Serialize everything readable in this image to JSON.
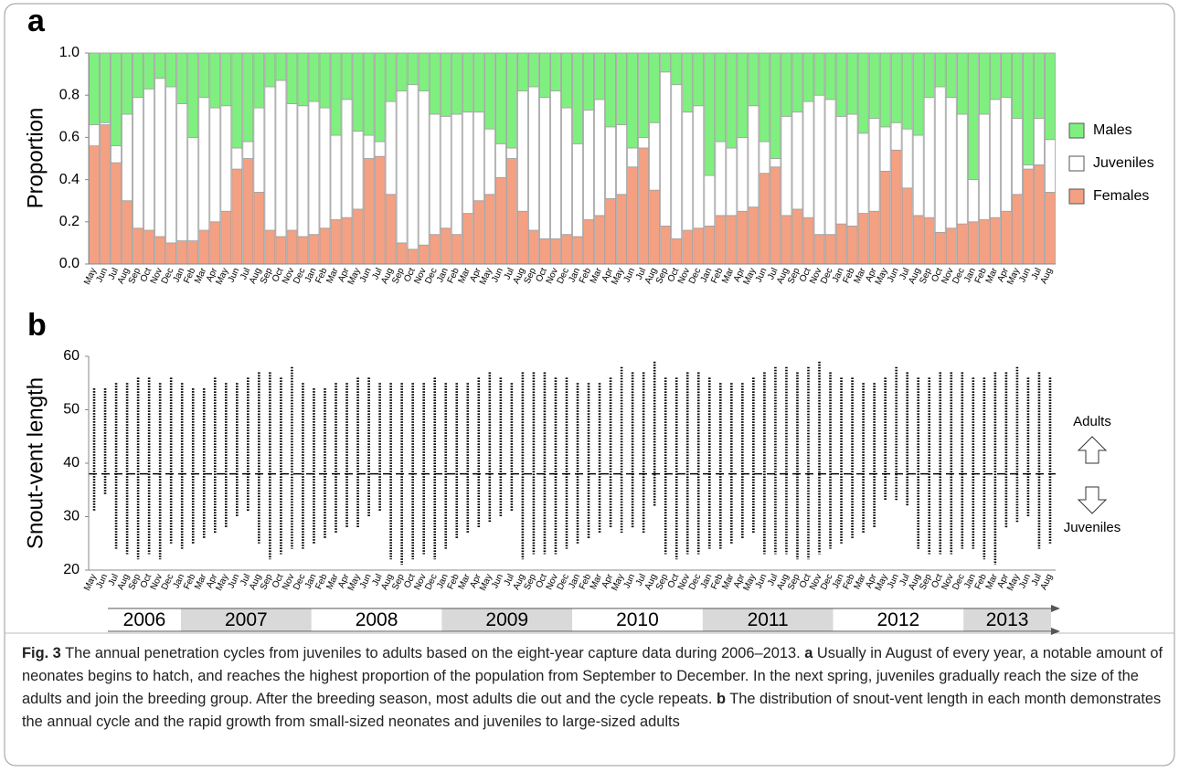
{
  "chart_data": [
    {
      "type": "stacked_bar",
      "panel_label": "a",
      "y_label": "Proportion",
      "categories": [
        "May",
        "Jun",
        "Jul",
        "Aug",
        "Sep",
        "Oct",
        "Nov",
        "Dec",
        "Jan",
        "Feb",
        "Mar",
        "Apr",
        "May",
        "Jun",
        "Jul",
        "Aug",
        "Sep",
        "Oct",
        "Nov",
        "Dec",
        "Jan",
        "Feb",
        "Mar",
        "Apr",
        "May",
        "Jun",
        "Jul",
        "Aug",
        "Sep",
        "Oct",
        "Nov",
        "Dec",
        "Jan",
        "Feb",
        "Mar",
        "Apr",
        "May",
        "Jun",
        "Jul",
        "Aug",
        "Sep",
        "Oct",
        "Nov",
        "Dec",
        "Jan",
        "Feb",
        "Mar",
        "Apr",
        "May",
        "Jun",
        "Jul",
        "Aug",
        "Sep",
        "Oct",
        "Nov",
        "Dec",
        "Jan",
        "Feb",
        "Mar",
        "Apr",
        "May",
        "Jun",
        "Jul",
        "Aug",
        "Sep",
        "Oct",
        "Nov",
        "Dec",
        "Jan",
        "Feb",
        "Mar",
        "Apr",
        "May",
        "Jun",
        "Jul",
        "Aug",
        "Sep",
        "Oct",
        "Nov",
        "Dec",
        "Jan",
        "Feb",
        "Mar",
        "Apr",
        "May",
        "Jun",
        "Jul",
        "Aug"
      ],
      "series": [
        {
          "name": "Females",
          "color": "#f4a083",
          "values": [
            0.56,
            0.66,
            0.48,
            0.3,
            0.17,
            0.16,
            0.13,
            0.1,
            0.11,
            0.11,
            0.16,
            0.2,
            0.25,
            0.45,
            0.5,
            0.34,
            0.16,
            0.13,
            0.16,
            0.13,
            0.14,
            0.17,
            0.21,
            0.22,
            0.26,
            0.5,
            0.51,
            0.33,
            0.1,
            0.07,
            0.09,
            0.14,
            0.17,
            0.14,
            0.24,
            0.3,
            0.33,
            0.41,
            0.5,
            0.25,
            0.16,
            0.12,
            0.12,
            0.14,
            0.13,
            0.21,
            0.23,
            0.31,
            0.33,
            0.46,
            0.55,
            0.35,
            0.18,
            0.12,
            0.16,
            0.17,
            0.18,
            0.23,
            0.23,
            0.25,
            0.27,
            0.43,
            0.46,
            0.23,
            0.26,
            0.22,
            0.14,
            0.14,
            0.19,
            0.18,
            0.24,
            0.25,
            0.44,
            0.54,
            0.36,
            0.23,
            0.22,
            0.15,
            0.17,
            0.19,
            0.2,
            0.21,
            0.22,
            0.25,
            0.33,
            0.45,
            0.47,
            0.34
          ]
        },
        {
          "name": "Juveniles",
          "color": "#ffffff",
          "values": [
            0.1,
            0.01,
            0.08,
            0.41,
            0.62,
            0.67,
            0.75,
            0.74,
            0.65,
            0.49,
            0.63,
            0.54,
            0.5,
            0.1,
            0.08,
            0.4,
            0.68,
            0.74,
            0.6,
            0.62,
            0.63,
            0.57,
            0.4,
            0.56,
            0.37,
            0.11,
            0.07,
            0.44,
            0.72,
            0.78,
            0.73,
            0.57,
            0.53,
            0.57,
            0.48,
            0.42,
            0.31,
            0.16,
            0.05,
            0.57,
            0.68,
            0.67,
            0.7,
            0.6,
            0.44,
            0.52,
            0.55,
            0.34,
            0.33,
            0.09,
            0.05,
            0.32,
            0.73,
            0.73,
            0.56,
            0.58,
            0.24,
            0.35,
            0.32,
            0.35,
            0.48,
            0.15,
            0.04,
            0.47,
            0.46,
            0.55,
            0.66,
            0.64,
            0.51,
            0.53,
            0.38,
            0.44,
            0.21,
            0.13,
            0.28,
            0.38,
            0.57,
            0.69,
            0.62,
            0.52,
            0.2,
            0.5,
            0.56,
            0.54,
            0.36,
            0.02,
            0.22,
            0.25
          ]
        },
        {
          "name": "Males",
          "color": "#7ff07f",
          "values": [
            0.34,
            0.33,
            0.44,
            0.29,
            0.21,
            0.17,
            0.12,
            0.16,
            0.24,
            0.4,
            0.21,
            0.26,
            0.25,
            0.45,
            0.42,
            0.26,
            0.16,
            0.13,
            0.24,
            0.25,
            0.23,
            0.26,
            0.39,
            0.22,
            0.37,
            0.39,
            0.42,
            0.23,
            0.18,
            0.15,
            0.18,
            0.29,
            0.3,
            0.29,
            0.28,
            0.28,
            0.36,
            0.43,
            0.45,
            0.18,
            0.16,
            0.21,
            0.18,
            0.26,
            0.43,
            0.27,
            0.22,
            0.35,
            0.34,
            0.45,
            0.4,
            0.33,
            0.09,
            0.15,
            0.28,
            0.25,
            0.58,
            0.42,
            0.45,
            0.4,
            0.25,
            0.42,
            0.5,
            0.3,
            0.28,
            0.23,
            0.2,
            0.22,
            0.3,
            0.29,
            0.38,
            0.31,
            0.35,
            0.33,
            0.36,
            0.39,
            0.21,
            0.16,
            0.21,
            0.29,
            0.6,
            0.29,
            0.22,
            0.21,
            0.31,
            0.53,
            0.31,
            0.41
          ]
        }
      ],
      "ylim": [
        0,
        1
      ],
      "yticks": [
        {
          "value": 0,
          "label": "0.0"
        },
        {
          "value": 0.2,
          "label": "0.2"
        },
        {
          "value": 0.4,
          "label": "0.4"
        },
        {
          "value": 0.6,
          "label": "0.6"
        },
        {
          "value": 0.8,
          "label": "0.8"
        },
        {
          "value": 1,
          "label": "1.0"
        }
      ],
      "legend": "right",
      "grid": false
    },
    {
      "type": "range",
      "panel_label": "b",
      "y_label": "Snout-vent length",
      "color": "#000000",
      "max": [
        54,
        54,
        55,
        55,
        56,
        56,
        55,
        56,
        55,
        54,
        54,
        56,
        55,
        55,
        56,
        57,
        57,
        56,
        58,
        55,
        54,
        54,
        55,
        55,
        56,
        56,
        55,
        55,
        55,
        55,
        55,
        56,
        55,
        55,
        55,
        56,
        57,
        56,
        55,
        57,
        57,
        57,
        56,
        56,
        55,
        55,
        55,
        56,
        58,
        57,
        57,
        59,
        56,
        56,
        57,
        57,
        56,
        55,
        55,
        55,
        56,
        57,
        58,
        58,
        57,
        58,
        59,
        57,
        56,
        56,
        55,
        55,
        56,
        58,
        57,
        56,
        56,
        57,
        57,
        57,
        56,
        56,
        57,
        57,
        58,
        56,
        57,
        56
      ],
      "min": [
        31,
        34,
        24,
        23,
        22,
        23,
        22,
        25,
        24,
        25,
        26,
        27,
        28,
        30,
        31,
        25,
        22,
        23,
        24,
        24,
        25,
        26,
        27,
        28,
        28,
        30,
        31,
        22,
        21,
        22,
        23,
        22,
        24,
        26,
        27,
        28,
        29,
        30,
        31,
        22,
        23,
        23,
        23,
        24,
        25,
        26,
        27,
        28,
        27,
        28,
        27,
        32,
        23,
        22,
        23,
        23,
        24,
        24,
        25,
        26,
        27,
        23,
        23,
        23,
        22,
        22,
        23,
        24,
        25,
        26,
        27,
        28,
        33,
        33,
        32,
        24,
        23,
        23,
        23,
        24,
        24,
        22,
        21,
        28,
        29,
        30,
        24,
        25
      ],
      "threshold": 38,
      "annotations": [
        "Adults",
        "Juveniles"
      ],
      "ylim": [
        20,
        60
      ],
      "yticks": [
        20,
        30,
        40,
        50,
        60
      ]
    }
  ],
  "timeline": {
    "years": [
      "2006",
      "2007",
      "2008",
      "2009",
      "2010",
      "2011",
      "2012",
      "2013"
    ]
  },
  "caption": {
    "label": "Fig. 3",
    "text": "The annual penetration cycles from juveniles to adults based on the eight-year capture data during 2006–2013.",
    "a_label": "a",
    "a_text": "Usually in August of every year, a notable amount of neonates begins to hatch, and reaches the highest proportion of the population from September to December. In the next spring, juveniles gradually reach the size of the adults and join the breeding group. After the breeding season, most adults die out and the cycle repeats.",
    "b_label": "b",
    "b_text": "The distribution of snout-vent length in each month demonstrates the annual cycle and the rapid growth from small-sized neonates and juveniles to large-sized adults"
  }
}
